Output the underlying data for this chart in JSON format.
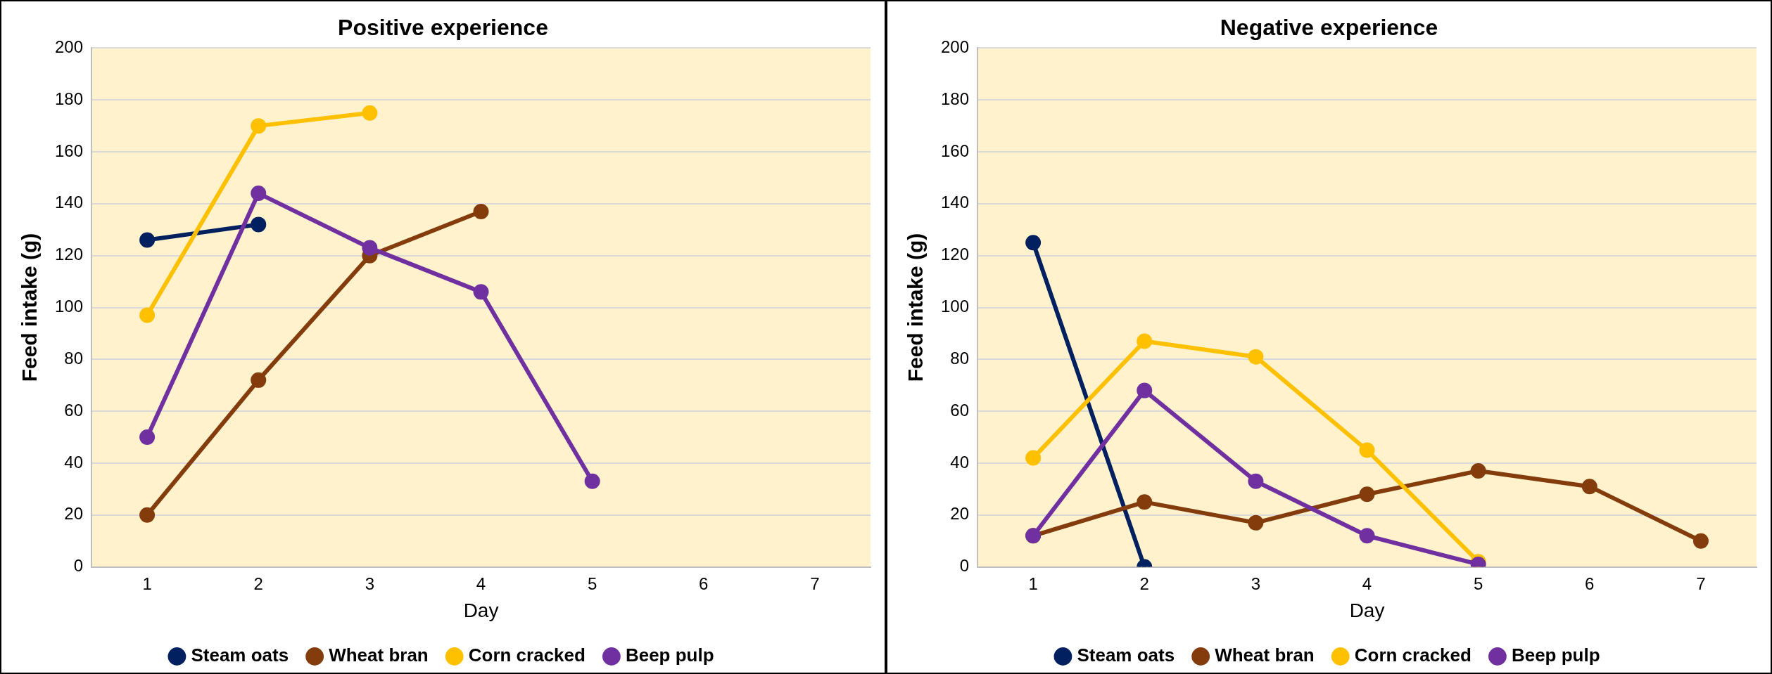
{
  "chart_data": [
    {
      "type": "line",
      "title": "Positive experience",
      "xlabel": "Day",
      "ylabel": "Feed intake (g)",
      "categories": [
        "1",
        "2",
        "3",
        "4",
        "5",
        "6",
        "7"
      ],
      "ylim": [
        0,
        200
      ],
      "yticks": [
        0,
        20,
        40,
        60,
        80,
        100,
        120,
        140,
        160,
        180,
        200
      ],
      "grid": "y",
      "legend": "bottom",
      "marker": "circle",
      "line_style": "solid",
      "series": [
        {
          "name": "Steam oats",
          "color": "#002060",
          "values": [
            126,
            132,
            null,
            null,
            null,
            null,
            null
          ]
        },
        {
          "name": "Wheat bran",
          "color": "#843c0c",
          "values": [
            20,
            72,
            120,
            137,
            null,
            null,
            null
          ]
        },
        {
          "name": "Corn cracked",
          "color": "#ffc000",
          "values": [
            97,
            170,
            175,
            null,
            null,
            null,
            null
          ]
        },
        {
          "name": "Beep pulp",
          "color": "#7030a0",
          "values": [
            50,
            144,
            123,
            106,
            33,
            null,
            null
          ]
        }
      ]
    },
    {
      "type": "line",
      "title": "Negative experience",
      "xlabel": "Day",
      "ylabel": "Feed intake (g)",
      "categories": [
        "1",
        "2",
        "3",
        "4",
        "5",
        "6",
        "7"
      ],
      "ylim": [
        0,
        200
      ],
      "yticks": [
        0,
        20,
        40,
        60,
        80,
        100,
        120,
        140,
        160,
        180,
        200
      ],
      "grid": "y",
      "legend": "bottom",
      "marker": "circle",
      "line_style": "solid",
      "series": [
        {
          "name": "Steam oats",
          "color": "#002060",
          "values": [
            125,
            0,
            null,
            null,
            null,
            null,
            null
          ]
        },
        {
          "name": "Wheat bran",
          "color": "#843c0c",
          "values": [
            12,
            25,
            17,
            28,
            37,
            31,
            10
          ]
        },
        {
          "name": "Corn cracked",
          "color": "#ffc000",
          "values": [
            42,
            87,
            81,
            45,
            2,
            null,
            null
          ]
        },
        {
          "name": "Beep pulp",
          "color": "#7030a0",
          "values": [
            12,
            68,
            33,
            12,
            1,
            null,
            null
          ]
        }
      ]
    }
  ]
}
